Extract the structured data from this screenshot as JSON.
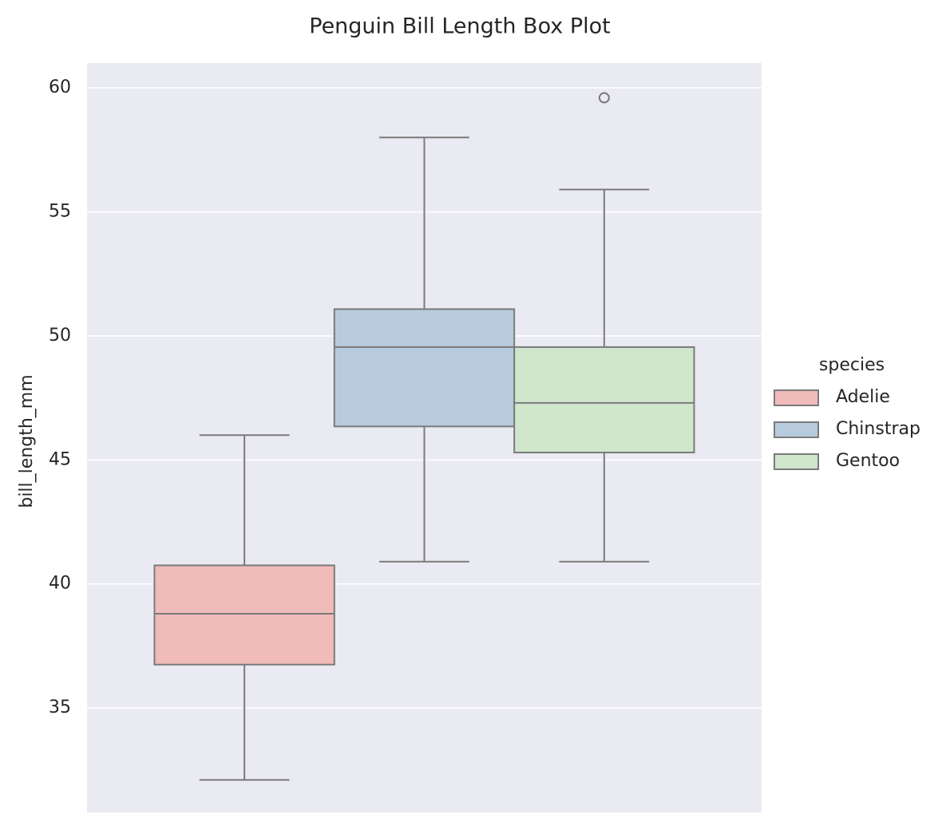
{
  "chart_data": {
    "type": "box",
    "title": "Penguin Bill Length Box Plot",
    "y_label": "bill_length_mm",
    "legend_title": "species",
    "legend_position": "right",
    "grid": true,
    "ylim": [
      30.79,
      61.0
    ],
    "yticks": [
      35,
      40,
      45,
      50,
      55,
      60
    ],
    "series": [
      {
        "name": "Adelie",
        "color": "#f1bbba",
        "whislo": 32.1,
        "q1": 36.75,
        "med": 38.8,
        "q3": 40.75,
        "whishi": 46.0,
        "fliers": []
      },
      {
        "name": "Chinstrap",
        "color": "#b8cbde",
        "whislo": 40.9,
        "q1": 46.35,
        "med": 49.55,
        "q3": 51.08,
        "whishi": 58.0,
        "fliers": []
      },
      {
        "name": "Gentoo",
        "color": "#cfe6cb",
        "whislo": 40.9,
        "q1": 45.3,
        "med": 47.3,
        "q3": 49.55,
        "whishi": 55.9,
        "fliers": [
          59.6
        ]
      }
    ]
  }
}
